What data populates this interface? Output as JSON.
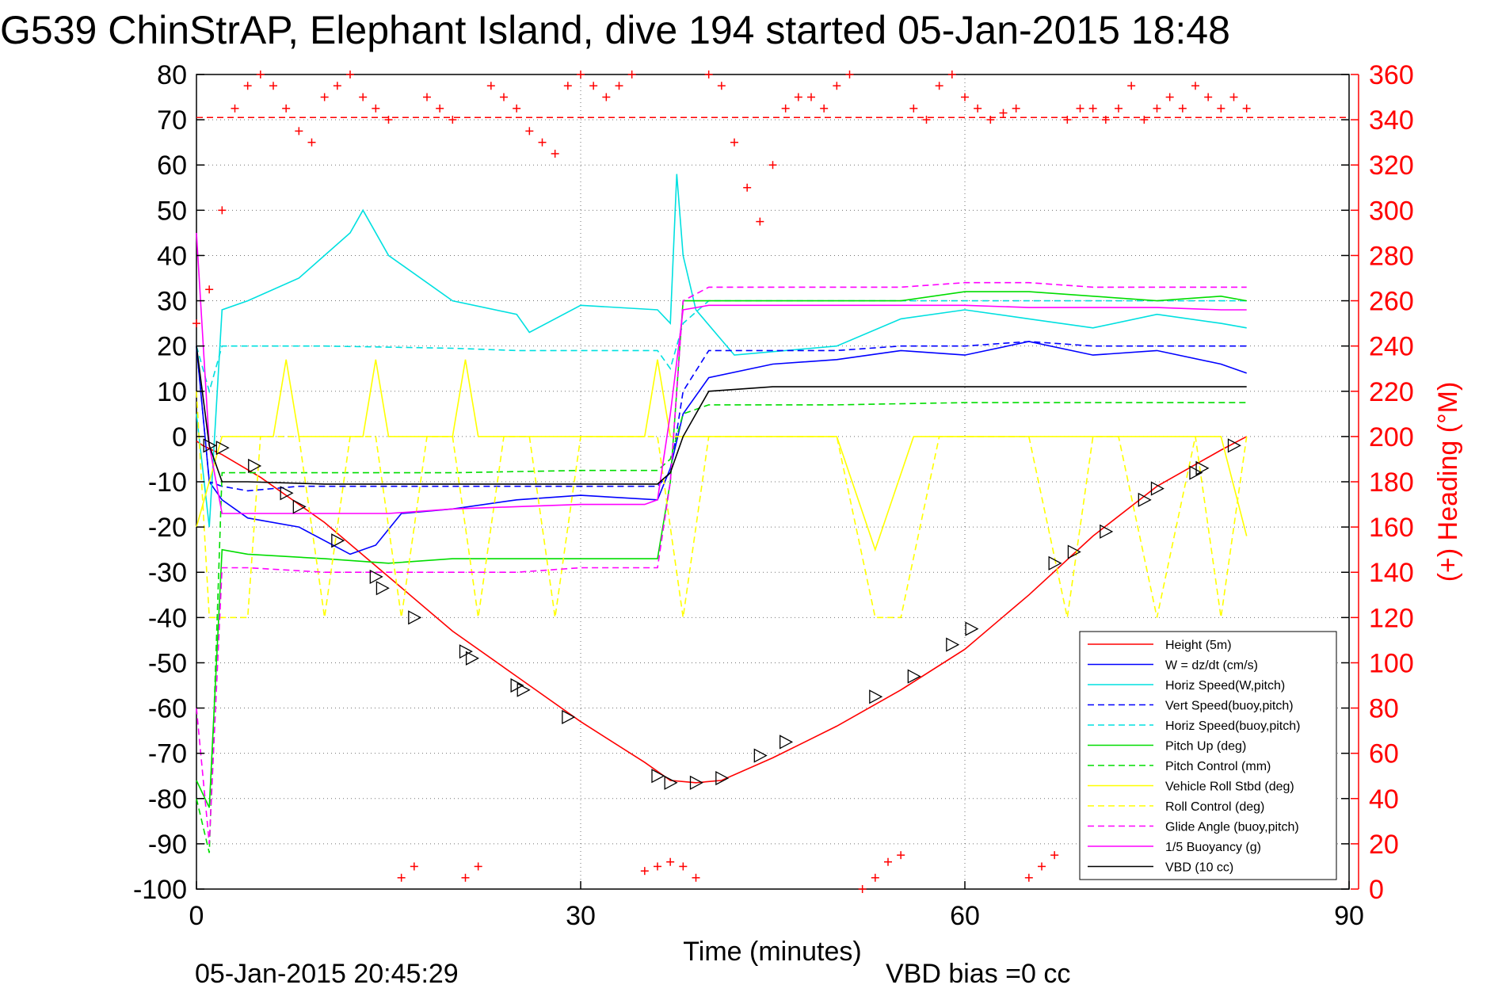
{
  "chart_data": {
    "type": "line",
    "title": "G539 ChinStrAP, Elephant Island, dive 194 started 05-Jan-2015 18:48",
    "xlabel": "Time (minutes)",
    "ylabel_right": "(+) Heading (°M)",
    "xlim": [
      0,
      90
    ],
    "ylim": [
      -100,
      80
    ],
    "ylim_right": [
      0,
      360
    ],
    "x_ticks": [
      "0",
      "30",
      "60",
      "90"
    ],
    "y_ticks": [
      "80",
      "70",
      "60",
      "50",
      "40",
      "30",
      "20",
      "10",
      "0",
      "-10",
      "-20",
      "-30",
      "-40",
      "-50",
      "-60",
      "-70",
      "-80",
      "-90",
      "-100"
    ],
    "y_ticks_right": [
      "360",
      "340",
      "320",
      "300",
      "280",
      "260",
      "240",
      "220",
      "200",
      "180",
      "160",
      "140",
      "120",
      "100",
      "80",
      "60",
      "40",
      "20",
      "0"
    ],
    "grid": true,
    "legend_position": "bottom-right",
    "series": [
      {
        "name": "Height (5m)",
        "color": "#ff0000",
        "style": "solid",
        "x": [
          0,
          0.5,
          2,
          5,
          10,
          15,
          20,
          25,
          30,
          35,
          37,
          39,
          41,
          45,
          50,
          55,
          60,
          65,
          70,
          75,
          80,
          82
        ],
        "y": [
          -1,
          -2,
          -4,
          -9,
          -19,
          -31,
          -43,
          -53,
          -63,
          -72,
          -76,
          -76.5,
          -76,
          -71,
          -64,
          -56,
          -47,
          -35,
          -22,
          -11,
          -3,
          0
        ]
      },
      {
        "name": "W = dz/dt (cm/s)",
        "color": "#0000ff",
        "style": "solid",
        "x": [
          0,
          1,
          2,
          4,
          8,
          12,
          14,
          16,
          20,
          25,
          30,
          36,
          37,
          38,
          40,
          45,
          50,
          55,
          60,
          65,
          70,
          75,
          80,
          82
        ],
        "y": [
          20,
          -10,
          -14,
          -18,
          -20,
          -26,
          -24,
          -17,
          -16,
          -14,
          -13,
          -14,
          -7,
          5,
          13,
          16,
          17,
          19,
          18,
          21,
          18,
          19,
          16,
          14
        ]
      },
      {
        "name": "Horiz Speed(W,pitch)",
        "color": "#00e0e0",
        "style": "solid",
        "x": [
          0,
          1,
          2,
          4,
          8,
          12,
          13,
          15,
          20,
          25,
          26,
          30,
          36,
          37,
          37.5,
          38,
          39,
          42,
          50,
          55,
          60,
          65,
          70,
          75,
          80,
          82
        ],
        "y": [
          5,
          -20,
          28,
          30,
          35,
          45,
          50,
          40,
          30,
          27,
          23,
          29,
          28,
          25,
          58,
          40,
          28,
          18,
          20,
          26,
          28,
          26,
          24,
          27,
          25,
          24
        ]
      },
      {
        "name": "Vert Speed(buoy,pitch)",
        "color": "#0000ff",
        "style": "dashed",
        "x": [
          0,
          1,
          2,
          4,
          8,
          15,
          20,
          25,
          30,
          36,
          37,
          38,
          40,
          45,
          50,
          55,
          60,
          65,
          70,
          75,
          80,
          82
        ],
        "y": [
          20,
          -10,
          -11,
          -12,
          -11,
          -11,
          -11,
          -11,
          -11,
          -11,
          -8,
          10,
          19,
          19,
          19,
          20,
          20,
          21,
          20,
          20,
          20,
          20
        ]
      },
      {
        "name": "Horiz Speed(buoy,pitch)",
        "color": "#00e0e0",
        "style": "dashed",
        "x": [
          0,
          1,
          2,
          5,
          10,
          20,
          25,
          30,
          36,
          37,
          38,
          40,
          50,
          60,
          70,
          80,
          82
        ],
        "y": [
          20,
          10,
          20,
          20,
          20,
          19.5,
          19,
          19,
          19,
          15,
          25,
          30,
          30,
          30,
          30,
          30,
          30
        ]
      },
      {
        "name": "Pitch Up (deg)",
        "color": "#00dd00",
        "style": "solid",
        "x": [
          0,
          1,
          2,
          4,
          10,
          15,
          20,
          25,
          30,
          36,
          37,
          38,
          40,
          45,
          50,
          55,
          60,
          65,
          70,
          75,
          80,
          82
        ],
        "y": [
          -76,
          -82,
          -25,
          -26,
          -27,
          -28,
          -27,
          -27,
          -27,
          -27,
          -10,
          30,
          30,
          30,
          30,
          30,
          32,
          32,
          31,
          30,
          31,
          30
        ]
      },
      {
        "name": "Pitch Control (mm)",
        "color": "#00dd00",
        "style": "dashed",
        "x": [
          0,
          1,
          2,
          5,
          10,
          20,
          30,
          36,
          37,
          38,
          40,
          50,
          60,
          70,
          80,
          82
        ],
        "y": [
          -80,
          -92,
          -8,
          -8,
          -8,
          -8,
          -7.5,
          -7.5,
          -5,
          5,
          7,
          7,
          7.5,
          7.5,
          7.5,
          7.5
        ]
      },
      {
        "name": "Vehicle Roll Stbd (deg)",
        "color": "#ffff00",
        "style": "solid",
        "x": [
          0,
          2,
          5,
          6,
          7,
          8,
          10,
          13,
          14,
          15,
          17,
          20,
          21,
          22,
          25,
          30,
          35,
          36,
          37,
          38,
          40,
          45,
          50,
          53,
          56,
          60,
          65,
          70,
          75,
          80,
          82
        ],
        "y": [
          -20,
          0,
          0,
          0,
          17,
          0,
          0,
          0,
          17,
          0,
          0,
          0,
          17,
          0,
          0,
          0,
          0,
          17,
          0,
          0,
          0,
          0,
          0,
          -25,
          0,
          0,
          0,
          0,
          0,
          0,
          -22
        ]
      },
      {
        "name": "Roll Control (deg)",
        "color": "#ffff00",
        "style": "dashed",
        "x": [
          0,
          1,
          2,
          4,
          5,
          8,
          10,
          12,
          14,
          16,
          18,
          20,
          22,
          24,
          26,
          28,
          30,
          32,
          34,
          36,
          38,
          40,
          42,
          45,
          50,
          53,
          55,
          58,
          60,
          65,
          68,
          70,
          72,
          75,
          78,
          80,
          82
        ],
        "y": [
          10,
          -40,
          -40,
          -40,
          0,
          0,
          -40,
          0,
          0,
          -40,
          0,
          0,
          -40,
          0,
          0,
          -40,
          0,
          0,
          0,
          0,
          -40,
          0,
          0,
          0,
          0,
          -40,
          -40,
          0,
          0,
          0,
          -40,
          0,
          0,
          -40,
          0,
          -40,
          0
        ]
      },
      {
        "name": "Glide Angle (buoy,pitch)",
        "color": "#ff00ff",
        "style": "dashed",
        "x": [
          0,
          1,
          2,
          4,
          10,
          15,
          20,
          25,
          30,
          36,
          37,
          38,
          40,
          45,
          50,
          55,
          60,
          65,
          70,
          75,
          80,
          82
        ],
        "y": [
          -60,
          -90,
          -29,
          -29,
          -30,
          -30,
          -30,
          -30,
          -29,
          -29,
          -10,
          30,
          33,
          33,
          33,
          33,
          34,
          34,
          33,
          33,
          33,
          33
        ]
      },
      {
        "name": "1/5 Buoyancy (g)",
        "color": "#ff00ff",
        "style": "solid",
        "x": [
          0,
          1,
          2,
          4,
          10,
          15,
          20,
          25,
          30,
          35,
          36,
          37,
          38,
          40,
          45,
          50,
          55,
          60,
          65,
          70,
          75,
          80,
          82
        ],
        "y": [
          45,
          -2,
          -17,
          -17,
          -17,
          -17,
          -16,
          -15.5,
          -15,
          -15,
          -14,
          5,
          28,
          29,
          29,
          29,
          29,
          29,
          28.5,
          28.5,
          28.5,
          28,
          28
        ]
      },
      {
        "name": "VBD (10 cc)",
        "color": "#000000",
        "style": "solid",
        "x": [
          0,
          1,
          2,
          4,
          10,
          20,
          30,
          36,
          37,
          38,
          40,
          45,
          50,
          60,
          70,
          80,
          82
        ],
        "y": [
          20,
          -2,
          -10,
          -10,
          -10.5,
          -10.5,
          -10.5,
          -10.5,
          -8,
          0,
          10,
          11,
          11,
          11,
          11,
          11,
          11
        ]
      }
    ],
    "heading_samples_right_axis": {
      "name": "(+) Heading",
      "color": "#ff0000",
      "marker": "+",
      "x": [
        0,
        1,
        2,
        3,
        4,
        5,
        6,
        7,
        8,
        9,
        10,
        11,
        12,
        13,
        14,
        15,
        16,
        17,
        18,
        19,
        20,
        21,
        22,
        23,
        24,
        25,
        26,
        27,
        28,
        29,
        30,
        31,
        32,
        33,
        34,
        35,
        36,
        37,
        38,
        39,
        40,
        41,
        42,
        43,
        44,
        45,
        46,
        47,
        48,
        49,
        50,
        51,
        52,
        53,
        54,
        55,
        56,
        57,
        58,
        59,
        60,
        61,
        62,
        63,
        64,
        65,
        66,
        67,
        68,
        69,
        70,
        71,
        72,
        73,
        74,
        75,
        76,
        77,
        78,
        79,
        80,
        81,
        82
      ],
      "y": [
        250,
        265,
        300,
        345,
        355,
        360,
        355,
        345,
        335,
        330,
        350,
        355,
        360,
        350,
        345,
        340,
        5,
        10,
        350,
        345,
        340,
        5,
        10,
        355,
        350,
        345,
        335,
        330,
        325,
        355,
        360,
        355,
        350,
        355,
        360,
        8,
        10,
        12,
        10,
        5,
        360,
        355,
        330,
        310,
        295,
        320,
        345,
        350,
        350,
        345,
        355,
        360,
        0,
        5,
        12,
        15,
        345,
        340,
        355,
        360,
        350,
        345,
        340,
        343,
        345,
        5,
        10,
        15,
        340,
        345,
        345,
        340,
        345,
        355,
        340,
        345,
        350,
        345,
        355,
        350,
        345,
        350,
        345
      ]
    },
    "heading_reference_line": {
      "color": "#ff0000",
      "style": "dashed",
      "value": 341
    },
    "depth_markers": {
      "marker": "triangle",
      "color": "#000000",
      "x": [
        1,
        2,
        4.5,
        7,
        8,
        11,
        14,
        14.5,
        17,
        21,
        21.5,
        25,
        25.5,
        29,
        36,
        37,
        39,
        41,
        44,
        46,
        53,
        56,
        59,
        60.5,
        67,
        68.5,
        71,
        74,
        75,
        78,
        78.5,
        81
      ],
      "y": [
        -2,
        -2.5,
        -6.5,
        -12.5,
        -15.5,
        -23,
        -31,
        -33.5,
        -40,
        -47.5,
        -49,
        -55,
        -56,
        -62,
        -75,
        -76.5,
        -76.5,
        -75.5,
        -70.5,
        -67.5,
        -57.5,
        -53,
        -46,
        -42.5,
        -28,
        -25.5,
        -21,
        -14,
        -11.5,
        -8,
        -7,
        -2
      ]
    }
  },
  "footer": {
    "timestamp": "05-Jan-2015 20:45:29",
    "vbd_bias": "VBD bias =0 cc"
  }
}
